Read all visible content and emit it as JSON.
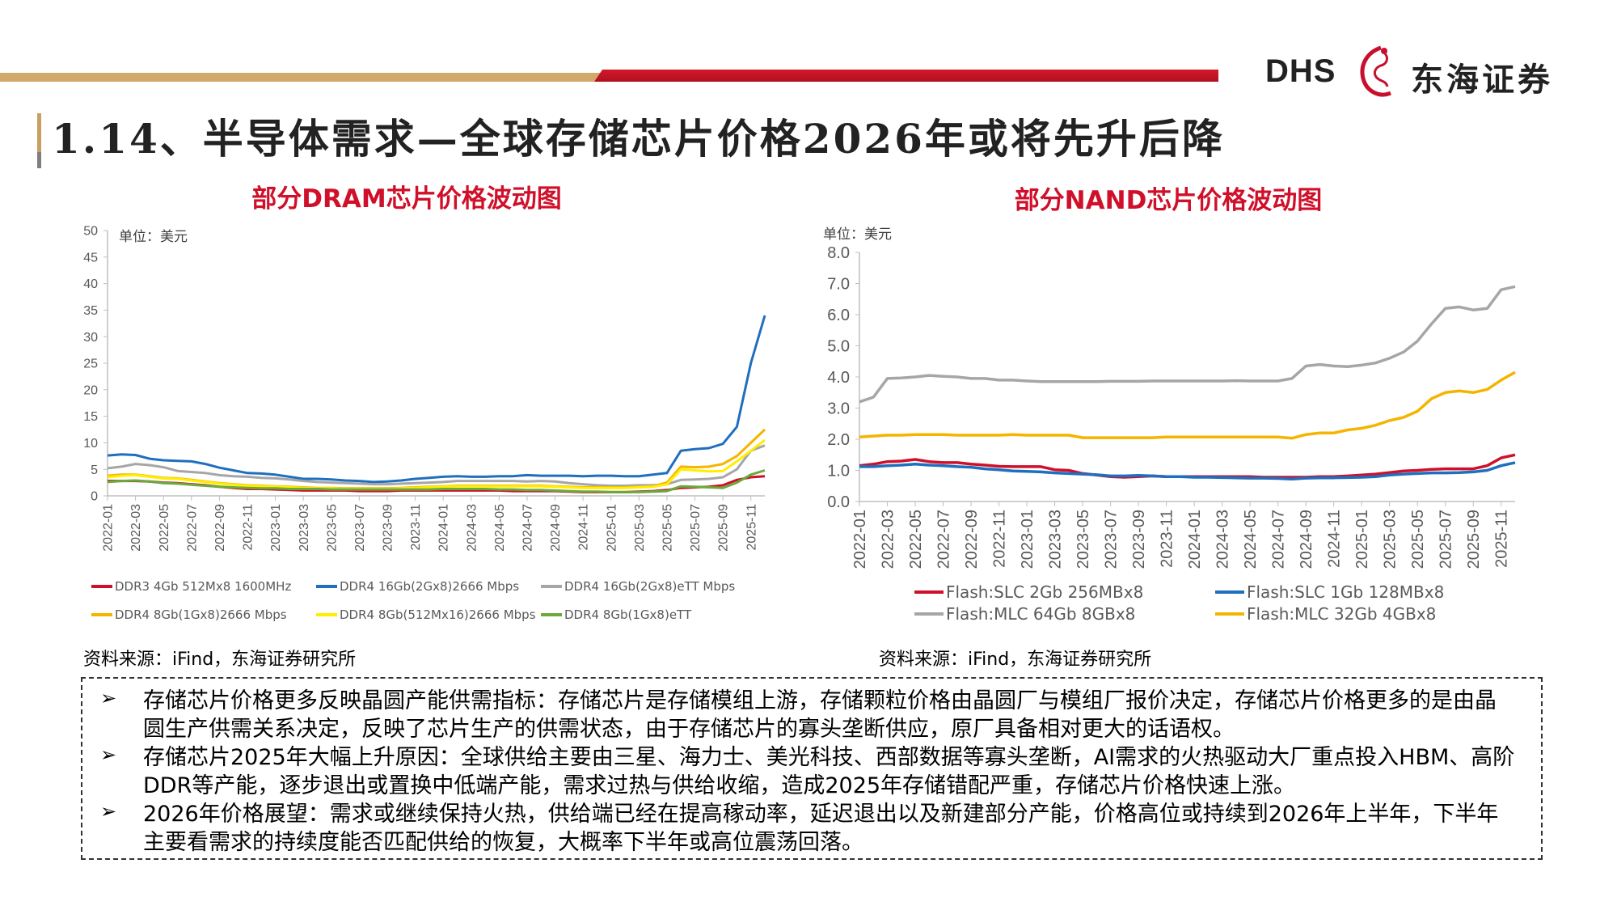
{
  "header": {
    "logo_text": "DHS",
    "logo_cn": "东海证券",
    "colors": {
      "tan": "#d2a96a",
      "red": "#c8102e"
    }
  },
  "page_title": "1.14、半导体需求—全球存储芯片价格2026年或将先升后降",
  "left_chart": {
    "title": "部分DRAM芯片价格波动图",
    "unit": "单位：美元",
    "source": "资料来源：iFind，东海证券研究所"
  },
  "right_chart": {
    "title": "部分NAND芯片价格波动图",
    "unit": "单位：美元",
    "source": "资料来源：iFind，东海证券研究所"
  },
  "bullets": [
    "存储芯片价格更多反映晶圆产能供需指标：存储芯片是存储模组上游，存储颗粒价格由晶圆厂与模组厂报价决定，存储芯片价格更多的是由晶圆生产供需关系决定，反映了芯片生产的供需状态，由于存储芯片的寡头垄断供应，原厂具备相对更大的话语权。",
    "存储芯片2025年大幅上升原因：全球供给主要由三星、海力士、美光科技、西部数据等寡头垄断，AI需求的火热驱动大厂重点投入HBM、高阶DDR等产能，逐步退出或置换中低端产能，需求过热与供给收缩，造成2025年存储错配严重，存储芯片价格快速上涨。",
    "2026年价格展望：需求或继续保持火热，供给端已经在提高稼动率，延迟退出以及新建部分产能，价格高位或持续到2026年上半年，下半年主要看需求的持续度能否匹配供给的恢复，大概率下半年或高位震荡回落。"
  ],
  "chart_data": [
    {
      "type": "line",
      "title": "部分DRAM芯片价格波动图",
      "ylabel": "单位：美元",
      "ylim": [
        0,
        50
      ],
      "y_ticks": [
        "0",
        "5",
        "10",
        "15",
        "20",
        "25",
        "30",
        "35",
        "40",
        "45",
        "50"
      ],
      "x_ticks": [
        "2022-01",
        "2022-03",
        "2022-05",
        "2022-07",
        "2022-09",
        "2022-11",
        "2023-01",
        "2023-03",
        "2023-05",
        "2023-07",
        "2023-09",
        "2023-11",
        "2024-01",
        "2024-03",
        "2024-05",
        "2024-07",
        "2024-09",
        "2024-11",
        "2025-01",
        "2025-03",
        "2025-05",
        "2025-07",
        "2025-09",
        "2025-11"
      ],
      "x": [
        "2022-01",
        "2022-02",
        "2022-03",
        "2022-04",
        "2022-05",
        "2022-06",
        "2022-07",
        "2022-08",
        "2022-09",
        "2022-10",
        "2022-11",
        "2022-12",
        "2023-01",
        "2023-02",
        "2023-03",
        "2023-04",
        "2023-05",
        "2023-06",
        "2023-07",
        "2023-08",
        "2023-09",
        "2023-10",
        "2023-11",
        "2023-12",
        "2024-01",
        "2024-02",
        "2024-03",
        "2024-04",
        "2024-05",
        "2024-06",
        "2024-07",
        "2024-08",
        "2024-09",
        "2024-10",
        "2024-11",
        "2024-12",
        "2025-01",
        "2025-02",
        "2025-03",
        "2025-04",
        "2025-05",
        "2025-06",
        "2025-07",
        "2025-08",
        "2025-09",
        "2025-10",
        "2025-11",
        "2025-12"
      ],
      "grid": false,
      "legend": "bottom",
      "series": [
        {
          "name": "DDR3 4Gb 512Mx8 1600MHz",
          "color": "#d0102a",
          "values": [
            2.8,
            2.8,
            2.8,
            2.7,
            2.5,
            2.4,
            2.2,
            2.0,
            1.7,
            1.5,
            1.3,
            1.3,
            1.2,
            1.1,
            1.0,
            1.0,
            1.0,
            1.0,
            0.9,
            0.9,
            0.9,
            1.0,
            1.0,
            1.0,
            1.0,
            1.0,
            1.0,
            1.0,
            1.0,
            0.9,
            0.9,
            0.9,
            0.9,
            0.8,
            0.7,
            0.7,
            0.7,
            0.7,
            0.8,
            0.9,
            1.1,
            1.5,
            1.6,
            1.7,
            2.0,
            3.0,
            3.5,
            3.7
          ]
        },
        {
          "name": "DDR4 16Gb(2Gx8)2666 Mbps",
          "color": "#1f6fbf",
          "values": [
            7.6,
            7.8,
            7.7,
            7.0,
            6.7,
            6.6,
            6.5,
            6.0,
            5.3,
            4.8,
            4.3,
            4.2,
            4.0,
            3.6,
            3.2,
            3.2,
            3.1,
            2.9,
            2.8,
            2.6,
            2.7,
            2.9,
            3.2,
            3.4,
            3.6,
            3.7,
            3.6,
            3.6,
            3.7,
            3.7,
            3.9,
            3.8,
            3.8,
            3.8,
            3.7,
            3.8,
            3.8,
            3.7,
            3.7,
            4.0,
            4.3,
            8.5,
            8.8,
            9.0,
            9.8,
            13.0,
            25.0,
            34.0
          ]
        },
        {
          "name": "DDR4 16Gb(2Gx8)eTT Mbps",
          "color": "#a6a6a6",
          "values": [
            5.2,
            5.5,
            6.0,
            5.8,
            5.4,
            4.7,
            4.5,
            4.3,
            3.9,
            3.7,
            3.6,
            3.4,
            3.3,
            3.1,
            2.8,
            2.6,
            2.5,
            2.4,
            2.3,
            2.2,
            2.2,
            2.3,
            2.4,
            2.5,
            2.6,
            2.8,
            2.8,
            2.8,
            2.8,
            2.8,
            2.7,
            2.8,
            2.7,
            2.4,
            2.2,
            2.0,
            1.9,
            1.9,
            2.0,
            2.0,
            2.2,
            3.0,
            3.1,
            3.2,
            3.5,
            5.0,
            8.5,
            9.5
          ]
        },
        {
          "name": "DDR4 8Gb(1Gx8)2666 Mbps",
          "color": "#f5b400",
          "values": [
            3.8,
            4.0,
            4.0,
            3.7,
            3.4,
            3.3,
            3.0,
            2.7,
            2.4,
            2.2,
            2.0,
            1.9,
            1.8,
            1.7,
            1.6,
            1.5,
            1.5,
            1.4,
            1.4,
            1.4,
            1.4,
            1.5,
            1.6,
            1.7,
            1.8,
            1.9,
            1.9,
            1.9,
            1.9,
            1.9,
            1.9,
            1.9,
            1.8,
            1.7,
            1.6,
            1.6,
            1.6,
            1.6,
            1.7,
            1.8,
            2.5,
            5.5,
            5.4,
            5.5,
            6.0,
            7.5,
            10.0,
            12.5
          ]
        },
        {
          "name": "DDR4 8Gb(512Mx16)2666 Mbps",
          "color": "#ffee00",
          "values": [
            3.5,
            3.8,
            3.9,
            3.6,
            3.3,
            3.2,
            2.9,
            2.6,
            2.3,
            2.1,
            1.9,
            1.8,
            1.7,
            1.6,
            1.5,
            1.4,
            1.4,
            1.3,
            1.3,
            1.3,
            1.3,
            1.4,
            1.5,
            1.6,
            1.7,
            1.8,
            1.8,
            1.8,
            1.8,
            1.8,
            1.8,
            1.8,
            1.7,
            1.6,
            1.5,
            1.5,
            1.5,
            1.5,
            1.6,
            1.7,
            2.2,
            5.0,
            4.8,
            4.6,
            4.7,
            6.5,
            8.5,
            10.5
          ]
        },
        {
          "name": "DDR4 8Gb(1Gx8)eTT",
          "color": "#6aaa3a",
          "values": [
            2.6,
            2.8,
            2.9,
            2.7,
            2.4,
            2.3,
            2.1,
            1.9,
            1.7,
            1.6,
            1.5,
            1.4,
            1.4,
            1.3,
            1.3,
            1.3,
            1.2,
            1.2,
            1.2,
            1.2,
            1.2,
            1.2,
            1.2,
            1.2,
            1.3,
            1.3,
            1.3,
            1.3,
            1.2,
            1.2,
            1.1,
            1.1,
            1.0,
            0.9,
            0.8,
            0.8,
            0.7,
            0.7,
            0.7,
            0.8,
            0.9,
            1.8,
            1.7,
            1.6,
            1.5,
            2.5,
            4.0,
            4.8
          ]
        }
      ]
    },
    {
      "type": "line",
      "title": "部分NAND芯片价格波动图",
      "ylabel": "单位：美元",
      "ylim": [
        0,
        8
      ],
      "y_ticks": [
        "0.0",
        "1.0",
        "2.0",
        "3.0",
        "4.0",
        "5.0",
        "6.0",
        "7.0",
        "8.0"
      ],
      "x_ticks": [
        "2022-01",
        "2022-03",
        "2022-05",
        "2022-07",
        "2022-09",
        "2022-11",
        "2023-01",
        "2023-03",
        "2023-05",
        "2023-07",
        "2023-09",
        "2023-11",
        "2024-01",
        "2024-03",
        "2024-05",
        "2024-07",
        "2024-09",
        "2024-11",
        "2025-01",
        "2025-03",
        "2025-05",
        "2025-07",
        "2025-09",
        "2025-11"
      ],
      "x": [
        "2022-01",
        "2022-02",
        "2022-03",
        "2022-04",
        "2022-05",
        "2022-06",
        "2022-07",
        "2022-08",
        "2022-09",
        "2022-10",
        "2022-11",
        "2022-12",
        "2023-01",
        "2023-02",
        "2023-03",
        "2023-04",
        "2023-05",
        "2023-06",
        "2023-07",
        "2023-08",
        "2023-09",
        "2023-10",
        "2023-11",
        "2023-12",
        "2024-01",
        "2024-02",
        "2024-03",
        "2024-04",
        "2024-05",
        "2024-06",
        "2024-07",
        "2024-08",
        "2024-09",
        "2024-10",
        "2024-11",
        "2024-12",
        "2025-01",
        "2025-02",
        "2025-03",
        "2025-04",
        "2025-05",
        "2025-06",
        "2025-07",
        "2025-08",
        "2025-09",
        "2025-10",
        "2025-11",
        "2025-12"
      ],
      "grid": false,
      "legend": "bottom",
      "series": [
        {
          "name": "Flash:SLC 2Gb 256MBx8",
          "color": "#d0102a",
          "values": [
            1.15,
            1.2,
            1.28,
            1.3,
            1.35,
            1.28,
            1.25,
            1.25,
            1.2,
            1.17,
            1.13,
            1.12,
            1.12,
            1.12,
            1.02,
            1.0,
            0.9,
            0.85,
            0.8,
            0.78,
            0.8,
            0.82,
            0.8,
            0.8,
            0.8,
            0.8,
            0.8,
            0.8,
            0.8,
            0.78,
            0.78,
            0.78,
            0.78,
            0.8,
            0.8,
            0.82,
            0.85,
            0.88,
            0.93,
            0.98,
            1.0,
            1.03,
            1.05,
            1.05,
            1.05,
            1.15,
            1.4,
            1.5
          ]
        },
        {
          "name": "Flash:SLC 1Gb 128MBx8",
          "color": "#1f6fbf",
          "values": [
            1.12,
            1.12,
            1.15,
            1.17,
            1.2,
            1.17,
            1.15,
            1.12,
            1.1,
            1.05,
            1.02,
            0.98,
            0.97,
            0.95,
            0.92,
            0.9,
            0.88,
            0.86,
            0.82,
            0.82,
            0.84,
            0.82,
            0.8,
            0.8,
            0.78,
            0.78,
            0.77,
            0.76,
            0.75,
            0.75,
            0.74,
            0.72,
            0.75,
            0.76,
            0.76,
            0.77,
            0.78,
            0.8,
            0.85,
            0.88,
            0.9,
            0.92,
            0.92,
            0.93,
            0.95,
            1.0,
            1.15,
            1.25
          ]
        },
        {
          "name": "Flash:MLC 64Gb 8GBx8",
          "color": "#a6a6a6",
          "values": [
            3.2,
            3.35,
            3.95,
            3.97,
            4.0,
            4.05,
            4.02,
            4.0,
            3.95,
            3.95,
            3.9,
            3.9,
            3.87,
            3.85,
            3.85,
            3.85,
            3.85,
            3.85,
            3.86,
            3.86,
            3.86,
            3.87,
            3.87,
            3.87,
            3.87,
            3.87,
            3.87,
            3.88,
            3.87,
            3.87,
            3.87,
            3.95,
            4.35,
            4.4,
            4.35,
            4.33,
            4.38,
            4.45,
            4.6,
            4.8,
            5.15,
            5.7,
            6.2,
            6.25,
            6.15,
            6.2,
            6.8,
            6.9
          ]
        },
        {
          "name": "Flash:MLC 32Gb 4GBx8",
          "color": "#f5b400",
          "values": [
            2.07,
            2.1,
            2.13,
            2.13,
            2.15,
            2.15,
            2.15,
            2.13,
            2.13,
            2.13,
            2.13,
            2.15,
            2.13,
            2.13,
            2.13,
            2.13,
            2.05,
            2.05,
            2.05,
            2.05,
            2.05,
            2.05,
            2.07,
            2.07,
            2.07,
            2.07,
            2.07,
            2.07,
            2.07,
            2.07,
            2.07,
            2.03,
            2.15,
            2.2,
            2.2,
            2.3,
            2.35,
            2.45,
            2.6,
            2.7,
            2.9,
            3.3,
            3.5,
            3.55,
            3.5,
            3.6,
            3.9,
            4.15
          ]
        }
      ]
    }
  ]
}
